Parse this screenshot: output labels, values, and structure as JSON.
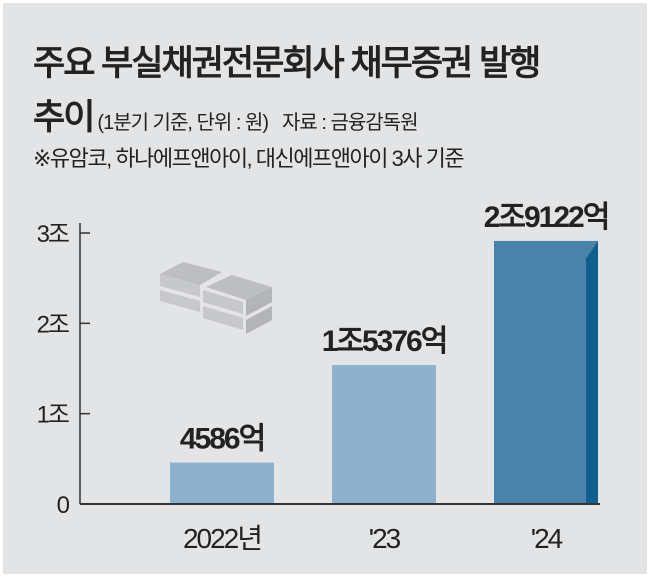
{
  "header": {
    "title_line1": "주요 부실채권전문회사 채무증권 발행",
    "title_line2": "추이",
    "unit_note": "(1분기 기준, 단위 : 원)",
    "source": "자료 : 금융감독원",
    "footnote": "※유암코, 하나에프앤아이, 대신에프앤아이 3사 기준"
  },
  "chart_data": {
    "type": "bar",
    "title": "주요 부실채권전문회사 채무증권 발행 추이",
    "categories": [
      "2022년",
      "'23",
      "'24"
    ],
    "values": [
      0.4586,
      1.5376,
      2.9122
    ],
    "value_labels": [
      "4586억",
      "1조5376억",
      "2조9122억"
    ],
    "ylabel": "원 (조)",
    "ylim": [
      0,
      3
    ],
    "yticks": [
      {
        "value": 0,
        "label": "0"
      },
      {
        "value": 1,
        "label": "1조"
      },
      {
        "value": 2,
        "label": "2조"
      },
      {
        "value": 3,
        "label": "3조"
      }
    ],
    "grid": false,
    "colors": [
      "#8eb1cd",
      "#8eb1cd",
      "#4a82a9"
    ],
    "highlight_side_color": "#10608f"
  }
}
